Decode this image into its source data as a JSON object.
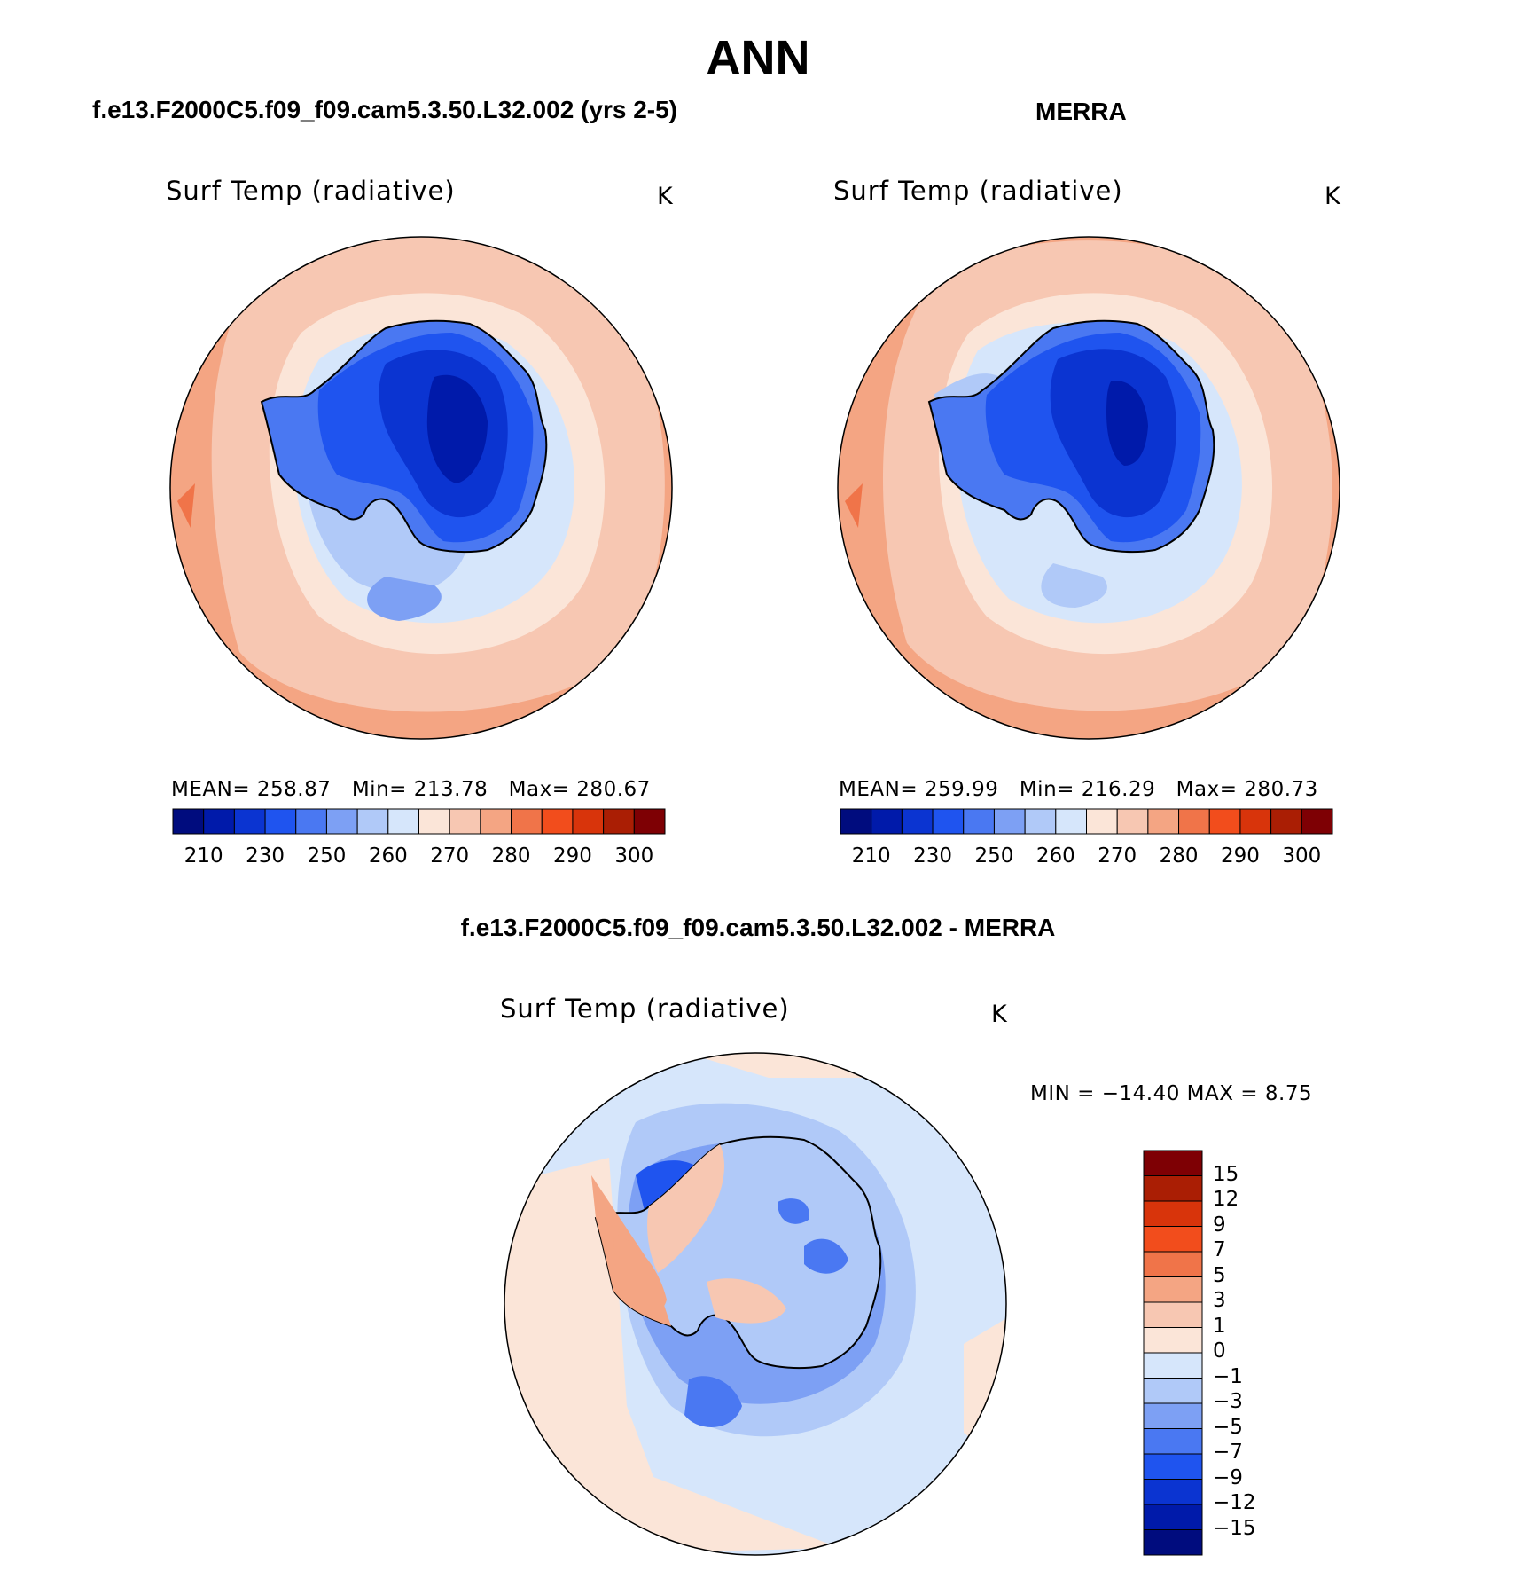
{
  "main_title": "ANN",
  "colors": {
    "abs_scale": [
      "#000c7e",
      "#001aaa",
      "#0b34d1",
      "#1f54ef",
      "#4a78f2",
      "#7da0f4",
      "#b0c9f8",
      "#d6e6fb",
      "#fbe5d8",
      "#f7c7b2",
      "#f4a583",
      "#f07449",
      "#f24d1c",
      "#d8340b",
      "#aa1e04",
      "#7e0004"
    ],
    "diff_scale": [
      "#000c7e",
      "#001aaa",
      "#0b34d1",
      "#1f54ef",
      "#4a78f2",
      "#7da0f4",
      "#b0c9f8",
      "#d6e6fb",
      "#fbe5d8",
      "#f7c7b2",
      "#f4a583",
      "#f07449",
      "#f24d1c",
      "#d8340b",
      "#aa1e04",
      "#7e0004"
    ]
  },
  "panels": {
    "model": {
      "title": "f.e13.F2000C5.f09_f09.cam5.3.50.L32.002 (yrs 2-5)",
      "variable": "Surf Temp (radiative)",
      "unit": "K",
      "stats": {
        "mean_label": "MEAN=",
        "mean": "258.87",
        "min_label": "Min=",
        "min": "213.78",
        "max_label": "Max=",
        "max": "280.67"
      },
      "colorbar_ticks": [
        "210",
        "230",
        "250",
        "260",
        "270",
        "280",
        "290",
        "300"
      ]
    },
    "obs": {
      "title": "MERRA",
      "variable": "Surf Temp (radiative)",
      "unit": "K",
      "stats": {
        "mean_label": "MEAN=",
        "mean": "259.99",
        "min_label": "Min=",
        "min": "216.29",
        "max_label": "Max=",
        "max": "280.73"
      },
      "colorbar_ticks": [
        "210",
        "230",
        "250",
        "260",
        "270",
        "280",
        "290",
        "300"
      ]
    },
    "diff": {
      "title": "f.e13.F2000C5.f09_f09.cam5.3.50.L32.002 - MERRA",
      "variable": "Surf Temp (radiative)",
      "unit": "K",
      "minmax": "MIN = −14.40 MAX =    8.75",
      "colorbar_ticks": [
        "15",
        "12",
        "9",
        "7",
        "5",
        "3",
        "1",
        "0",
        "−1",
        "−3",
        "−5",
        "−7",
        "−9",
        "−12",
        "−15"
      ]
    }
  }
}
